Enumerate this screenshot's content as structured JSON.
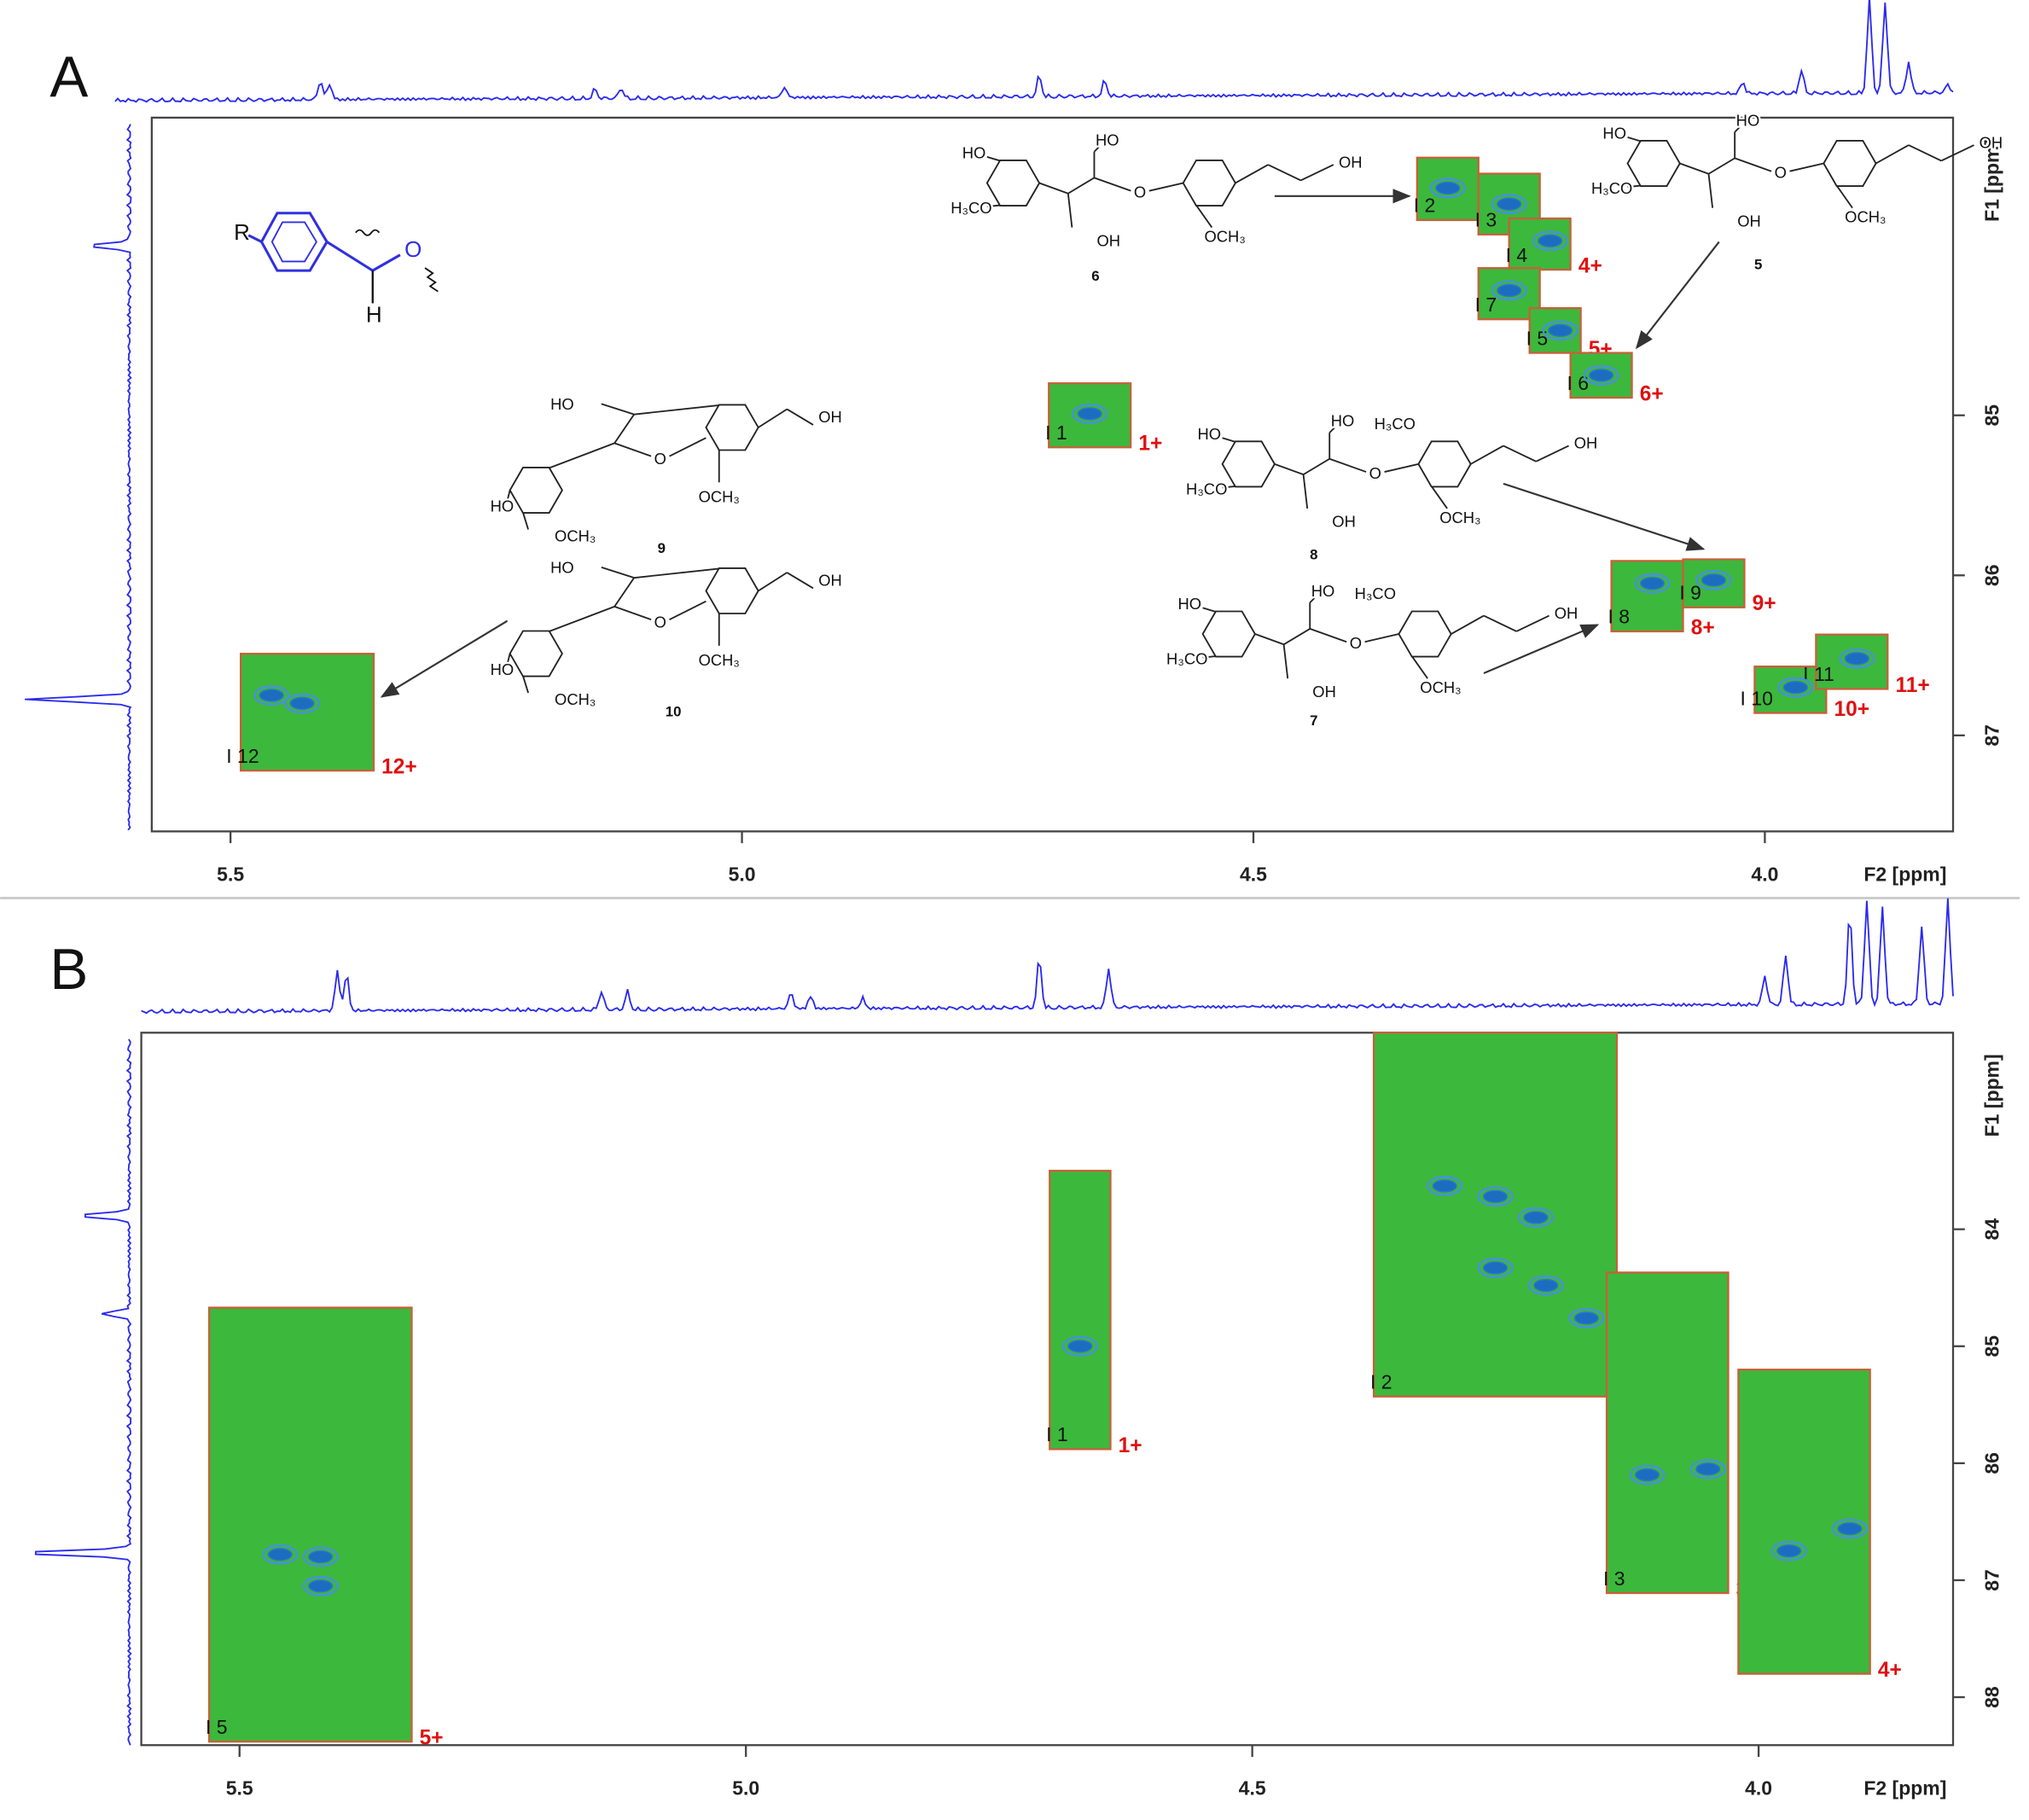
{
  "chart_data": [
    {
      "type": "nmr2d",
      "title": "A",
      "x_label": "F2 [ppm]",
      "y_label": "F1 [ppm]",
      "xlim": [
        5.577,
        3.816
      ],
      "xticks": [
        5.5,
        {
          "value": 5,
          "label": "5.0"
        },
        4.5,
        {
          "value": 4,
          "label": "4.0"
        }
      ],
      "ylim": [
        83.14,
        87.6
      ],
      "yticks": [
        85,
        86,
        87
      ],
      "region_color": "#3cb83c",
      "contour_color": "#1c6cc0",
      "regions": [
        {
          "name": "1+",
          "peak": "I 1",
          "xlim": [
            4.7,
            4.62
          ],
          "ylim": [
            84.8,
            85.2
          ]
        },
        {
          "name": "2+",
          "peak": "I 2",
          "xlim": [
            4.34,
            4.28
          ],
          "ylim": [
            83.39,
            83.78
          ]
        },
        {
          "name": "3+",
          "peak": "I 3",
          "xlim": [
            4.28,
            4.22
          ],
          "ylim": [
            83.49,
            83.87
          ]
        },
        {
          "name": "4+",
          "peak": "I 4",
          "xlim": [
            4.25,
            4.19
          ],
          "ylim": [
            83.77,
            84.09
          ]
        },
        {
          "name": "7+",
          "peak": "I 7",
          "xlim": [
            4.28,
            4.22
          ],
          "ylim": [
            84.08,
            84.4
          ]
        },
        {
          "name": "5+",
          "peak": "I 5",
          "xlim": [
            4.23,
            4.18
          ],
          "ylim": [
            84.33,
            84.61
          ]
        },
        {
          "name": "6+",
          "peak": "I 6",
          "xlim": [
            4.19,
            4.13
          ],
          "ylim": [
            84.61,
            84.89
          ]
        },
        {
          "name": "8+",
          "peak": "I 8",
          "xlim": [
            4.15,
            4.08
          ],
          "ylim": [
            85.91,
            86.35
          ]
        },
        {
          "name": "9+",
          "peak": "I 9",
          "xlim": [
            4.08,
            4.02
          ],
          "ylim": [
            85.9,
            86.2
          ]
        },
        {
          "name": "10+",
          "peak": "I 10",
          "xlim": [
            4.01,
            3.94
          ],
          "ylim": [
            86.57,
            86.86
          ]
        },
        {
          "name": "11+",
          "peak": "I 11",
          "xlim": [
            3.95,
            3.88
          ],
          "ylim": [
            86.37,
            86.71
          ]
        },
        {
          "name": "12+",
          "peak": "I 12",
          "xlim": [
            5.49,
            5.36
          ],
          "ylim": [
            86.49,
            87.22
          ]
        }
      ],
      "contours": {
        "x": [
          4.66,
          4.31,
          4.25,
          4.21,
          4.25,
          4.2,
          4.16,
          4.11,
          4.05,
          3.97,
          3.91,
          5.43,
          5.46
        ],
        "y": [
          84.99,
          83.58,
          83.68,
          83.91,
          84.22,
          84.47,
          84.75,
          86.05,
          86.03,
          86.7,
          86.52,
          86.8,
          86.75
        ]
      },
      "fragment_labels": [
        "R",
        "O",
        "H"
      ],
      "structures": [
        {
          "number": "6",
          "labels": [
            "HO",
            "H₃CO",
            "HO",
            "OH",
            "O",
            "OCH₃",
            "OH"
          ]
        },
        {
          "number": "5",
          "labels": [
            "HO",
            "H₃CO",
            "HO",
            "OH",
            "O",
            "OCH₃",
            "OH"
          ]
        },
        {
          "number": "8",
          "labels": [
            "HO",
            "H₃CO",
            "HO",
            "OH",
            "O",
            "OCH₃",
            "OH",
            "H₃CO"
          ]
        },
        {
          "number": "7",
          "labels": [
            "HO",
            "H₃CO",
            "HO",
            "OH",
            "O",
            "OCH₃",
            "OH",
            "H₃CO"
          ]
        },
        {
          "number": "9",
          "labels": [
            "HO",
            "O",
            "OCH₃",
            "OH",
            "HO",
            "OCH₃"
          ]
        },
        {
          "number": "10",
          "labels": [
            "HO",
            "O",
            "OCH₃",
            "OH",
            "HO",
            "OCH₃"
          ]
        }
      ]
    },
    {
      "type": "nmr2d",
      "title": "B",
      "x_label": "F2 [ppm]",
      "y_label": "F1 [ppm]",
      "xlim": [
        5.597,
        3.808
      ],
      "xticks": [
        5.5,
        {
          "value": 5,
          "label": "5.0"
        },
        4.5,
        {
          "value": 4,
          "label": "4.0"
        }
      ],
      "ylim": [
        82.32,
        88.41
      ],
      "yticks": [
        84,
        85,
        86,
        87,
        88
      ],
      "region_color": "#3cb83c",
      "contour_color": "#1c6cc0",
      "regions": [
        {
          "name": "1+",
          "peak": "I 1",
          "xlim": [
            4.7,
            4.64
          ],
          "ylim": [
            83.5,
            85.88
          ]
        },
        {
          "name": "2+",
          "peak": "I 2",
          "xlim": [
            4.38,
            4.14
          ],
          "ylim": [
            82.32,
            85.43
          ]
        },
        {
          "name": "3+",
          "peak": "I 3",
          "xlim": [
            4.15,
            4.03
          ],
          "ylim": [
            84.37,
            87.11
          ]
        },
        {
          "name": "4+",
          "xlim": [
            4.02,
            3.89
          ],
          "ylim": [
            85.2,
            87.8
          ]
        },
        {
          "name": "5+",
          "peak": "I 5",
          "xlim": [
            5.53,
            5.33
          ],
          "ylim": [
            84.67,
            88.38
          ]
        }
      ],
      "contours": {
        "x": [
          4.67,
          4.31,
          4.26,
          4.22,
          4.26,
          4.21,
          4.17,
          4.11,
          4.05,
          3.97,
          3.91,
          5.42,
          5.46,
          5.42
        ],
        "y": [
          85.0,
          83.63,
          83.72,
          83.9,
          84.33,
          84.48,
          84.76,
          86.1,
          86.05,
          86.75,
          86.56,
          86.8,
          86.78,
          87.05
        ]
      }
    }
  ]
}
